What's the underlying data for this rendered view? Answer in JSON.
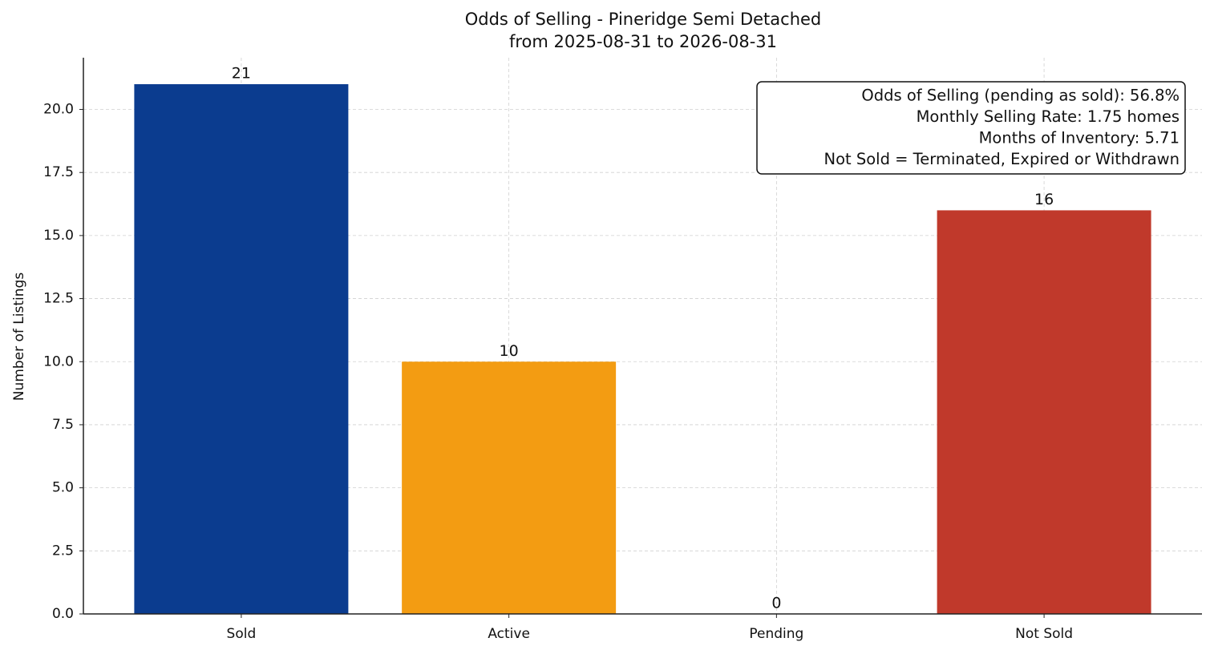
{
  "chart_data": {
    "type": "bar",
    "title": [
      "Odds of Selling - Pineridge Semi Detached",
      "from 2025-08-31 to 2026-08-31"
    ],
    "y_label": "Number of Listings",
    "categories": [
      "Sold",
      "Active",
      "Pending",
      "Not Sold"
    ],
    "values": [
      21,
      10,
      0,
      16
    ],
    "colors": [
      "#0b3c8f",
      "#f39c12",
      "#27ae60",
      "#c0392b"
    ],
    "ylim": [
      0,
      22.05
    ],
    "yticks": [
      {
        "value": 0,
        "label": "0.0"
      },
      2.5,
      {
        "value": 5,
        "label": "5.0"
      },
      7.5,
      {
        "value": 10,
        "label": "10.0"
      },
      12.5,
      {
        "value": 15,
        "label": "15.0"
      },
      17.5,
      {
        "value": 20,
        "label": "20.0"
      }
    ],
    "grid": true,
    "annotation": [
      "Odds of Selling (pending as sold): 56.8%",
      "Monthly Selling Rate: 1.75 homes",
      "Months of Inventory: 5.71",
      "Not Sold = Terminated, Expired or Withdrawn"
    ]
  }
}
